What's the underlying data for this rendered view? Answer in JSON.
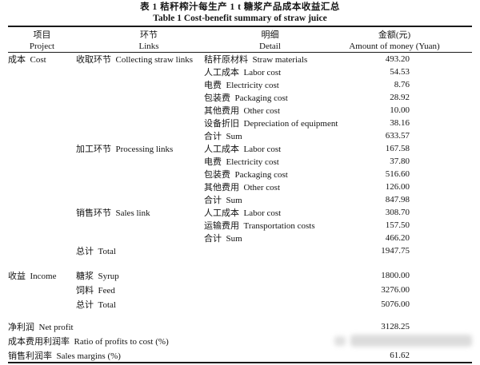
{
  "page": {
    "background": "#ffffff",
    "text_color": "#141414",
    "rule_color": "#1a1a1a"
  },
  "title": {
    "zh": "表 1  秸秆榨汁每生产 1 t 糖浆产品成本收益汇总",
    "en": "Table 1  Cost-benefit summary of straw juice"
  },
  "table": {
    "columns": [
      {
        "zh": "项目",
        "en": "Project"
      },
      {
        "zh": "环节",
        "en": "Links"
      },
      {
        "zh": "明细",
        "en": "Detail"
      },
      {
        "zh": "金额(元)",
        "en": "Amount of money (Yuan)"
      }
    ],
    "rows": [
      {
        "h": 16,
        "cells": [
          "成本  Cost",
          "收取环节  Collecting straw links",
          "秸秆原材料  Straw materials",
          "493.20"
        ]
      },
      {
        "h": 16,
        "cells": [
          "",
          "",
          "人工成本  Labor cost",
          "54.53"
        ]
      },
      {
        "h": 16,
        "cells": [
          "",
          "",
          "电费  Electricity cost",
          "8.76"
        ]
      },
      {
        "h": 16,
        "cells": [
          "",
          "",
          "包装费  Packaging cost",
          "28.92"
        ]
      },
      {
        "h": 16,
        "cells": [
          "",
          "",
          "其他费用  Other cost",
          "10.00"
        ]
      },
      {
        "h": 16,
        "cells": [
          "",
          "",
          "设备折旧  Depreciation of equipment",
          "38.16"
        ]
      },
      {
        "h": 16,
        "cells": [
          "",
          "",
          "合计  Sum",
          "633.57"
        ]
      },
      {
        "h": 16,
        "cells": [
          "",
          "加工环节  Processing links",
          "人工成本  Labor cost",
          "167.58"
        ]
      },
      {
        "h": 16,
        "cells": [
          "",
          "",
          "电费  Electricity cost",
          "37.80"
        ]
      },
      {
        "h": 16,
        "cells": [
          "",
          "",
          "包装费  Packaging cost",
          "516.60"
        ]
      },
      {
        "h": 16,
        "cells": [
          "",
          "",
          "其他费用  Other cost",
          "126.00"
        ]
      },
      {
        "h": 16,
        "cells": [
          "",
          "",
          "合计  Sum",
          "847.98"
        ]
      },
      {
        "h": 16,
        "cells": [
          "",
          "销售环节  Sales link",
          "人工成本  Labor cost",
          "308.70"
        ]
      },
      {
        "h": 16,
        "cells": [
          "",
          "",
          "运输费用  Transportation costs",
          "157.50"
        ]
      },
      {
        "h": 16,
        "cells": [
          "",
          "",
          "合计  Sum",
          "466.20"
        ]
      },
      {
        "h": 16,
        "cells": [
          "",
          "总计  Total",
          "",
          "1947.75"
        ]
      },
      {
        "h": 14,
        "gap": true
      },
      {
        "h": 18,
        "cells": [
          "收益  Income",
          "糖浆  Syrup",
          "",
          "1800.00"
        ]
      },
      {
        "h": 18,
        "cells": [
          "",
          "饲料  Feed",
          "",
          "3276.00"
        ]
      },
      {
        "h": 18,
        "cells": [
          "",
          "总计  Total",
          "",
          "5076.00"
        ]
      },
      {
        "h": 10,
        "gap": true
      },
      {
        "h": 18,
        "span": "净利润  Net profit",
        "amount": "3128.25"
      },
      {
        "h": 18,
        "span": "成本费用利润率  Ratio of profits to cost (%)",
        "amount": "",
        "watermark": true
      },
      {
        "h": 18,
        "span": "销售利润率  Sales margins (%)",
        "amount": "61.62"
      }
    ]
  }
}
